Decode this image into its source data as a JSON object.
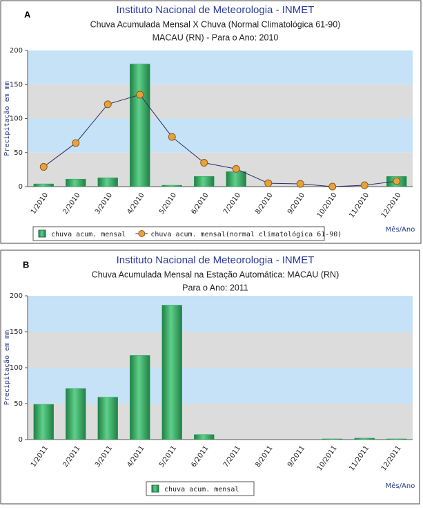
{
  "chart_data": [
    {
      "type": "bar",
      "panel": "A",
      "title": "Instituto Nacional de Meteorologia - INMET",
      "subtitles": [
        "Chuva Acumulada Mensal X Chuva (Normal Climatológica 61-90)",
        "MACAU (RN) - Para o Ano: 2010"
      ],
      "ylabel": "Precipitação em mm",
      "xlabel": "Mês/Ano",
      "categories": [
        "1/2010",
        "2/2010",
        "3/2010",
        "4/2010",
        "5/2010",
        "6/2010",
        "7/2010",
        "8/2010",
        "9/2010",
        "10/2010",
        "11/2010",
        "12/2010"
      ],
      "series": [
        {
          "name": "chuva acum. mensal",
          "kind": "bar",
          "color": "#2aa05a",
          "values": [
            4,
            11,
            13,
            180,
            2,
            15,
            22,
            0,
            0,
            0,
            0,
            15
          ]
        },
        {
          "name": "chuva acum. mensal(normal climatológica 61-90)",
          "kind": "line",
          "color": "#e8a23a",
          "values": [
            29,
            64,
            121,
            135,
            73,
            35,
            26,
            5,
            4,
            0,
            2,
            8
          ]
        }
      ],
      "ylim": [
        0,
        200
      ],
      "yticks": [
        0,
        50,
        100,
        150,
        200
      ]
    },
    {
      "type": "bar",
      "panel": "B",
      "title": "Instituto Nacional de Meteorologia - INMET",
      "subtitles": [
        "Chuva Acumulada Mensal na Estação Automática: MACAU (RN)",
        "Para o Ano: 2011"
      ],
      "ylabel": "Precipitação em mm",
      "xlabel": "Mês/Ano",
      "categories": [
        "1/2011",
        "2/2011",
        "3/2011",
        "4/2011",
        "5/2011",
        "6/2011",
        "7/2011",
        "8/2011",
        "9/2011",
        "10/2011",
        "11/2011",
        "12/2011"
      ],
      "series": [
        {
          "name": "chuva acum. mensal",
          "kind": "bar",
          "color": "#2aa05a",
          "values": [
            49,
            71,
            59,
            117,
            187,
            7,
            0,
            0,
            0,
            1,
            2,
            1
          ]
        }
      ],
      "ylim": [
        0,
        200
      ],
      "yticks": [
        0,
        50,
        100,
        150,
        200
      ]
    }
  ]
}
